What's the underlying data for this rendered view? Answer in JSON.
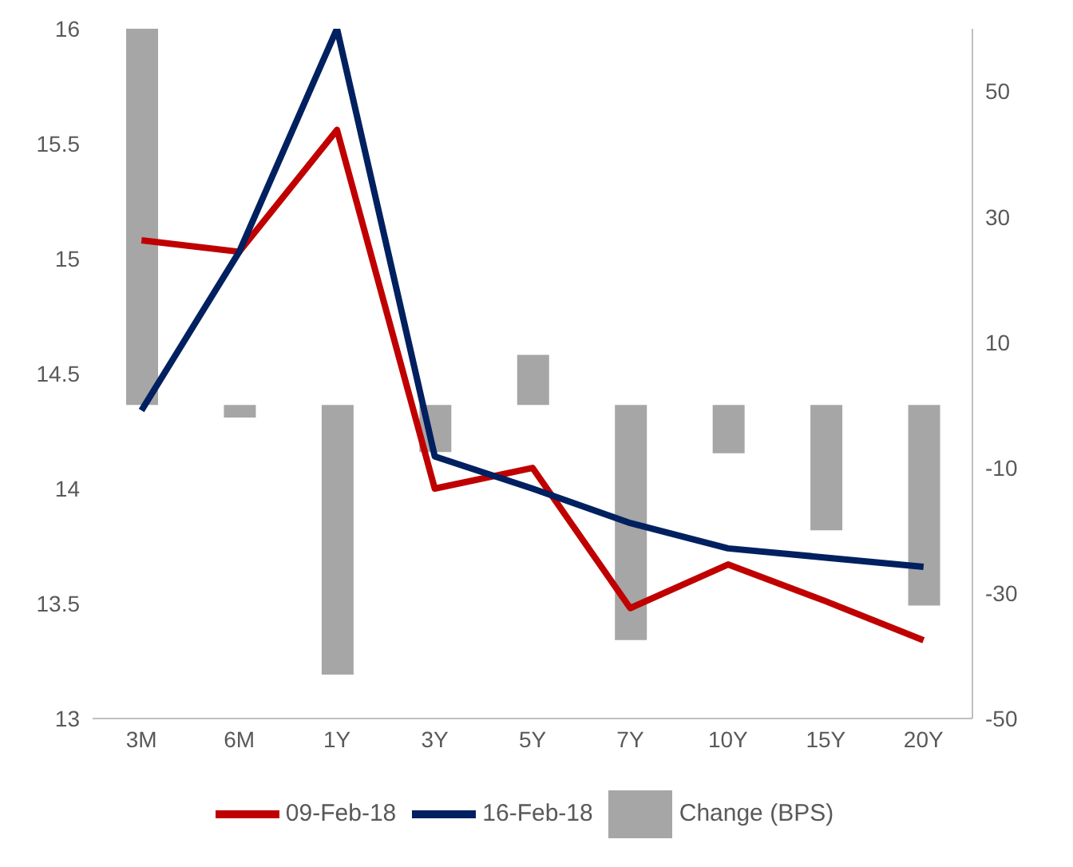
{
  "chart_data": {
    "type": "line",
    "categories": [
      "3M",
      "6M",
      "1Y",
      "3Y",
      "5Y",
      "7Y",
      "10Y",
      "15Y",
      "20Y"
    ],
    "series": [
      {
        "name": "Change (BPS)",
        "type": "bar",
        "axis": "y2",
        "color": "#a6a6a6",
        "values": [
          60,
          -2,
          -43,
          -7.5,
          8,
          -37.5,
          -7.7,
          -20,
          -32
        ]
      },
      {
        "name": "09-Feb-18",
        "color": "#c00000",
        "values": [
          15.08,
          15.03,
          15.56,
          14.0,
          14.09,
          13.48,
          13.67,
          13.51,
          13.34
        ]
      },
      {
        "name": "16-Feb-18",
        "color": "#002060",
        "values": [
          14.34,
          15.03,
          16.0,
          14.14,
          14.0,
          13.85,
          13.74,
          13.7,
          13.66
        ]
      }
    ],
    "ylim": [
      13,
      16
    ],
    "yticks": [
      13,
      13.5,
      14,
      14.5,
      15,
      15.5,
      16
    ],
    "y2lim": [
      -50,
      60
    ],
    "y2ticks": [
      -50,
      -30,
      -10,
      10,
      30,
      50
    ],
    "legend": "bottom",
    "marker": "none"
  }
}
